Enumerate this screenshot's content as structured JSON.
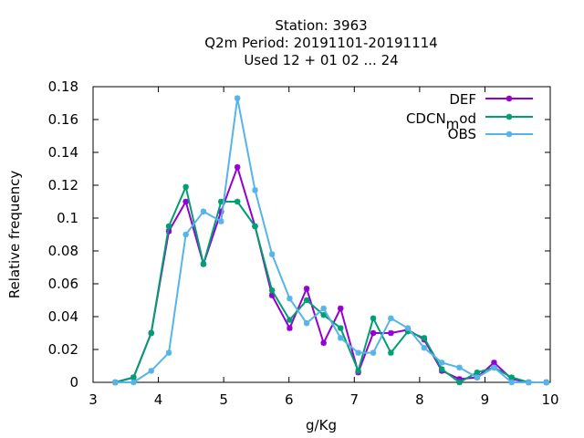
{
  "chart_data": {
    "type": "line",
    "title_lines": [
      "Station:     3963",
      "Q2m  Period: 20191101-20191114",
      "Used  12 + 01 02 ... 24"
    ],
    "xlabel": "g/Kg",
    "ylabel": "Relative frequency",
    "xlim": [
      3,
      10
    ],
    "ylim": [
      0,
      0.18
    ],
    "x_ticks": [
      "3",
      "4",
      "5",
      "6",
      "7",
      "8",
      "9",
      "10"
    ],
    "y_ticks": [
      "0",
      "0.02",
      "0.04",
      "0.06",
      "0.08",
      "0.1",
      "0.12",
      "0.14",
      "0.16",
      "0.18"
    ],
    "grid": false,
    "legend_position": "top-right",
    "x": [
      3.34,
      3.62,
      3.89,
      4.16,
      4.42,
      4.69,
      4.96,
      5.21,
      5.48,
      5.74,
      6.01,
      6.27,
      6.53,
      6.79,
      7.06,
      7.29,
      7.56,
      7.82,
      8.07,
      8.34,
      8.61,
      8.88,
      9.14,
      9.41,
      9.67,
      9.94
    ],
    "series": [
      {
        "name": "DEF",
        "color": "#9400d3",
        "values": [
          0.0,
          0.003,
          0.03,
          0.092,
          0.11,
          0.072,
          0.104,
          0.131,
          0.095,
          0.053,
          0.033,
          0.057,
          0.024,
          0.045,
          0.006,
          0.03,
          0.03,
          0.032,
          0.026,
          0.007,
          0.002,
          0.003,
          0.012,
          0.002,
          0.0,
          0.0
        ]
      },
      {
        "name_main": "CDCN",
        "name_sub": "m",
        "name_tail": "od",
        "color": "#009e73",
        "values": [
          0.0,
          0.003,
          0.03,
          0.095,
          0.119,
          0.072,
          0.11,
          0.11,
          0.095,
          0.056,
          0.038,
          0.05,
          0.041,
          0.033,
          0.007,
          0.039,
          0.018,
          0.031,
          0.027,
          0.008,
          0.0,
          0.006,
          0.009,
          0.003,
          0.0,
          0.0
        ]
      },
      {
        "name": "OBS",
        "color": "#56b4e9",
        "values": [
          0.0,
          0.0,
          0.007,
          0.018,
          0.09,
          0.104,
          0.098,
          0.173,
          0.117,
          0.078,
          0.051,
          0.036,
          0.045,
          0.027,
          0.018,
          0.018,
          0.039,
          0.033,
          0.021,
          0.012,
          0.009,
          0.003,
          0.009,
          0.0,
          0.0,
          0.0
        ]
      }
    ]
  }
}
